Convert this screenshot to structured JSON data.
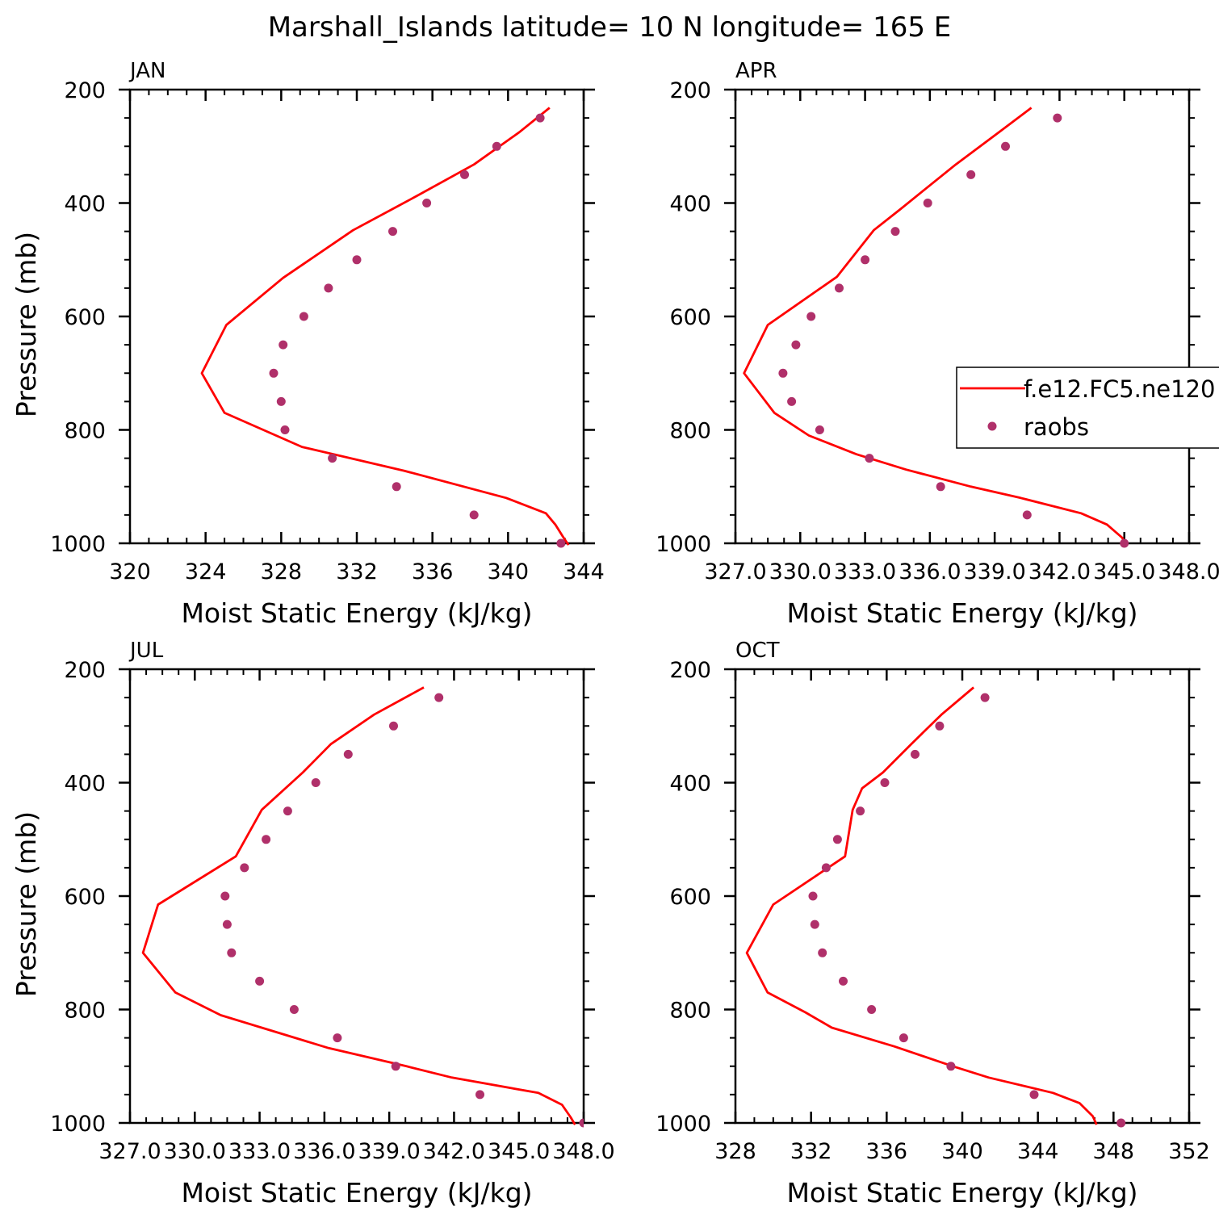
{
  "title": "Marshall_Islands  latitude= 10 N longitude= 165 E",
  "colors": {
    "model": "#ff0000",
    "obs": "#b0306a",
    "axis": "#000000"
  },
  "legend": {
    "model_label": "f.e12.FC5.ne120",
    "obs_label": "raobs",
    "placement": "APR panel, right edge"
  },
  "chart_data": [
    {
      "type": "line",
      "panel": "JAN",
      "xlabel": "Moist Static Energy (kJ/kg)",
      "ylabel": "Pressure (mb)",
      "xlim": [
        320,
        344
      ],
      "xticks": [
        320,
        324,
        328,
        332,
        336,
        340,
        344
      ],
      "xtick_labels": [
        "320",
        "324",
        "328",
        "332",
        "336",
        "340",
        "344"
      ],
      "ylim": [
        200,
        1000
      ],
      "yticks": [
        200,
        400,
        600,
        800,
        1000
      ],
      "ytick_labels": [
        "200",
        "400",
        "600",
        "800",
        "1000"
      ],
      "series": [
        {
          "name": "f.e12.FC5.ne120",
          "kind": "line",
          "points": [
            [
              342.2,
              232
            ],
            [
              340.6,
              275
            ],
            [
              338.2,
              332
            ],
            [
              335.2,
              387
            ],
            [
              334.2,
              405
            ],
            [
              331.8,
              448
            ],
            [
              328.1,
              532
            ],
            [
              325.1,
              615
            ],
            [
              323.8,
              700
            ],
            [
              325.0,
              770
            ],
            [
              329.1,
              830
            ],
            [
              334.5,
              872
            ],
            [
              339.9,
              920
            ],
            [
              342.0,
              947
            ],
            [
              342.5,
              967
            ],
            [
              342.9,
              988
            ],
            [
              343.2,
              1003
            ]
          ]
        },
        {
          "name": "raobs",
          "kind": "scatter",
          "points": [
            [
              341.7,
              250
            ],
            [
              339.4,
              300
            ],
            [
              337.7,
              350
            ],
            [
              335.7,
              400
            ],
            [
              333.9,
              450
            ],
            [
              332.0,
              500
            ],
            [
              330.5,
              550
            ],
            [
              329.2,
              600
            ],
            [
              328.1,
              650
            ],
            [
              327.6,
              700
            ],
            [
              328.0,
              750
            ],
            [
              328.2,
              800
            ],
            [
              330.7,
              850
            ],
            [
              334.1,
              900
            ],
            [
              338.2,
              950
            ],
            [
              342.8,
              1000
            ]
          ]
        }
      ]
    },
    {
      "type": "line",
      "panel": "APR",
      "xlabel": "Moist Static Energy (kJ/kg)",
      "ylabel": "",
      "xlim": [
        327.0,
        348.0
      ],
      "xticks": [
        327.0,
        330.0,
        333.0,
        336.0,
        339.0,
        342.0,
        345.0,
        348.0
      ],
      "xtick_labels": [
        "327.0",
        "330.0",
        "333.0",
        "336.0",
        "339.0",
        "342.0",
        "345.0",
        "348.0"
      ],
      "ylim": [
        200,
        1000
      ],
      "yticks": [
        200,
        400,
        600,
        800,
        1000
      ],
      "ytick_labels": [
        "200",
        "400",
        "600",
        "800",
        "1000"
      ],
      "series": [
        {
          "name": "f.e12.FC5.ne120",
          "kind": "line",
          "points": [
            [
              340.7,
              232
            ],
            [
              339.2,
              275
            ],
            [
              337.2,
              332
            ],
            [
              335.6,
              381
            ],
            [
              334.6,
              412
            ],
            [
              333.4,
              448
            ],
            [
              331.7,
              530
            ],
            [
              328.5,
              615
            ],
            [
              327.4,
              700
            ],
            [
              328.8,
              770
            ],
            [
              330.4,
              810
            ],
            [
              332.6,
              843
            ],
            [
              334.9,
              870
            ],
            [
              337.9,
              900
            ],
            [
              340.2,
              920
            ],
            [
              343.0,
              947
            ],
            [
              344.2,
              967
            ],
            [
              344.9,
              990
            ],
            [
              345.1,
              1003
            ]
          ]
        },
        {
          "name": "raobs",
          "kind": "scatter",
          "points": [
            [
              341.9,
              250
            ],
            [
              339.5,
              300
            ],
            [
              337.9,
              350
            ],
            [
              335.9,
              400
            ],
            [
              334.4,
              450
            ],
            [
              333.0,
              500
            ],
            [
              331.8,
              550
            ],
            [
              330.5,
              600
            ],
            [
              329.8,
              650
            ],
            [
              329.2,
              700
            ],
            [
              329.6,
              750
            ],
            [
              330.9,
              800
            ],
            [
              333.2,
              850
            ],
            [
              336.5,
              900
            ],
            [
              340.5,
              950
            ],
            [
              345.0,
              1000
            ]
          ]
        }
      ]
    },
    {
      "type": "line",
      "panel": "JUL",
      "xlabel": "Moist Static Energy (kJ/kg)",
      "ylabel": "Pressure (mb)",
      "xlim": [
        327.0,
        348.0
      ],
      "xticks": [
        327.0,
        330.0,
        333.0,
        336.0,
        339.0,
        342.0,
        345.0,
        348.0
      ],
      "xtick_labels": [
        "327.0",
        "330.0",
        "333.0",
        "336.0",
        "339.0",
        "342.0",
        "345.0",
        "348.0"
      ],
      "ylim": [
        200,
        1000
      ],
      "yticks": [
        200,
        400,
        600,
        800,
        1000
      ],
      "ytick_labels": [
        "200",
        "400",
        "600",
        "800",
        "1000"
      ],
      "series": [
        {
          "name": "f.e12.FC5.ne120",
          "kind": "line",
          "points": [
            [
              340.6,
              232
            ],
            [
              338.3,
              280
            ],
            [
              336.3,
              332
            ],
            [
              335.0,
              382
            ],
            [
              333.1,
              448
            ],
            [
              331.9,
              530
            ],
            [
              328.3,
              615
            ],
            [
              327.6,
              700
            ],
            [
              329.1,
              770
            ],
            [
              331.2,
              810
            ],
            [
              333.1,
              832
            ],
            [
              336.2,
              868
            ],
            [
              339.8,
              900
            ],
            [
              341.9,
              920
            ],
            [
              345.9,
              947
            ],
            [
              347.0,
              968
            ],
            [
              347.4,
              990
            ],
            [
              347.6,
              1003
            ]
          ]
        },
        {
          "name": "raobs",
          "kind": "scatter",
          "points": [
            [
              341.3,
              250
            ],
            [
              339.2,
              300
            ],
            [
              337.1,
              350
            ],
            [
              335.6,
              400
            ],
            [
              334.3,
              450
            ],
            [
              333.3,
              500
            ],
            [
              332.3,
              550
            ],
            [
              331.4,
              600
            ],
            [
              331.5,
              650
            ],
            [
              331.7,
              700
            ],
            [
              333.0,
              750
            ],
            [
              334.6,
              800
            ],
            [
              336.6,
              850
            ],
            [
              339.3,
              900
            ],
            [
              343.2,
              950
            ],
            [
              348.0,
              1000
            ]
          ]
        }
      ]
    },
    {
      "type": "line",
      "panel": "OCT",
      "xlabel": "Moist Static Energy (kJ/kg)",
      "ylabel": "",
      "xlim": [
        328,
        352
      ],
      "xticks": [
        328,
        332,
        336,
        340,
        344,
        348,
        352
      ],
      "xtick_labels": [
        "328",
        "332",
        "336",
        "340",
        "344",
        "348",
        "352"
      ],
      "ylim": [
        200,
        1000
      ],
      "yticks": [
        200,
        400,
        600,
        800,
        1000
      ],
      "ytick_labels": [
        "200",
        "400",
        "600",
        "800",
        "1000"
      ],
      "series": [
        {
          "name": "f.e12.FC5.ne120",
          "kind": "line",
          "points": [
            [
              340.6,
              232
            ],
            [
              338.9,
              280
            ],
            [
              337.3,
              332
            ],
            [
              335.8,
              382
            ],
            [
              334.7,
              410
            ],
            [
              334.2,
              448
            ],
            [
              333.8,
              530
            ],
            [
              330.0,
              615
            ],
            [
              328.6,
              700
            ],
            [
              329.7,
              770
            ],
            [
              331.7,
              805
            ],
            [
              333.1,
              832
            ],
            [
              336.4,
              865
            ],
            [
              339.5,
              900
            ],
            [
              341.4,
              920
            ],
            [
              344.8,
              947
            ],
            [
              346.2,
              965
            ],
            [
              346.9,
              988
            ],
            [
              347.1,
              1003
            ]
          ]
        },
        {
          "name": "raobs",
          "kind": "scatter",
          "points": [
            [
              341.2,
              250
            ],
            [
              338.8,
              300
            ],
            [
              337.5,
              350
            ],
            [
              335.9,
              400
            ],
            [
              334.6,
              450
            ],
            [
              333.4,
              500
            ],
            [
              332.8,
              550
            ],
            [
              332.1,
              600
            ],
            [
              332.2,
              650
            ],
            [
              332.6,
              700
            ],
            [
              333.7,
              750
            ],
            [
              335.2,
              800
            ],
            [
              336.9,
              850
            ],
            [
              339.4,
              900
            ],
            [
              343.8,
              950
            ],
            [
              348.4,
              1000
            ]
          ]
        }
      ]
    }
  ]
}
